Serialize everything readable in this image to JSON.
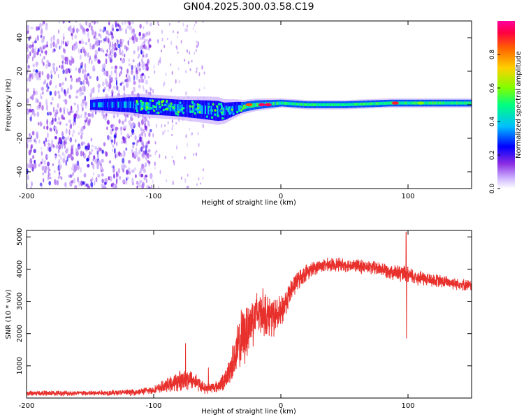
{
  "title": "GN04.2025.300.03.58.C19",
  "chart_data": [
    {
      "type": "heatmap",
      "name": "spectrogram",
      "xlabel": "Height of straight line (km)",
      "ylabel": "Frequency (Hz)",
      "xlim": [
        -200,
        150
      ],
      "ylim": [
        -50,
        50
      ],
      "xticks": [
        -200,
        -100,
        0,
        100
      ],
      "yticks": [
        -40,
        -20,
        0,
        20,
        40
      ],
      "colorbar": {
        "label": "Normalized spectral amplitude",
        "range": [
          0,
          1
        ],
        "ticks": [
          0.0,
          0.2,
          0.4,
          0.6,
          0.8
        ],
        "colors": [
          "#ffffff",
          "#cfb6ff",
          "#8a2be2",
          "#0000ff",
          "#00bfff",
          "#00ff80",
          "#80ff00",
          "#ffd000",
          "#ff6000",
          "#ff0040",
          "#ff00a0"
        ]
      },
      "features": {
        "noise_region_x": [
          -200,
          -110
        ],
        "scatter_region_x": [
          -110,
          -60
        ],
        "signal_center_hz": [
          [
            -150,
            0
          ],
          [
            -120,
            0
          ],
          [
            -100,
            -1
          ],
          [
            -80,
            -2
          ],
          [
            -60,
            -3
          ],
          [
            -45,
            -4
          ],
          [
            -35,
            -2
          ],
          [
            -20,
            0
          ],
          [
            0,
            1
          ],
          [
            20,
            0
          ],
          [
            50,
            0
          ],
          [
            85,
            1
          ],
          [
            100,
            1
          ],
          [
            150,
            1
          ]
        ],
        "signal_halfwidth_hz": [
          [
            -150,
            3
          ],
          [
            -110,
            5
          ],
          [
            -80,
            5
          ],
          [
            -50,
            6
          ],
          [
            -30,
            3
          ],
          [
            0,
            2
          ],
          [
            150,
            2
          ]
        ],
        "peak_points": [
          [
            -15,
            0,
            0.95
          ],
          [
            -10,
            0,
            0.95
          ],
          [
            -25,
            0,
            0.85
          ],
          [
            90,
            1,
            0.9
          ],
          [
            110,
            1,
            0.6
          ]
        ]
      }
    },
    {
      "type": "line",
      "name": "snr",
      "xlabel": "Height of straight line (km)",
      "ylabel": "SNR (10 * v/v)",
      "xlim": [
        -200,
        150
      ],
      "ylim": [
        0,
        5200
      ],
      "xticks": [
        -200,
        -100,
        0,
        100
      ],
      "yticks": [
        1000,
        2000,
        3000,
        4000,
        5000
      ],
      "color": "#e8302c",
      "envelope": [
        [
          -200,
          150,
          80
        ],
        [
          -150,
          150,
          80
        ],
        [
          -115,
          180,
          90
        ],
        [
          -100,
          250,
          120
        ],
        [
          -85,
          450,
          250
        ],
        [
          -75,
          600,
          350
        ],
        [
          -68,
          550,
          280
        ],
        [
          -60,
          300,
          150
        ],
        [
          -50,
          350,
          180
        ],
        [
          -43,
          600,
          300
        ],
        [
          -37,
          1200,
          600
        ],
        [
          -32,
          1700,
          900
        ],
        [
          -27,
          2100,
          900
        ],
        [
          -22,
          2500,
          800
        ],
        [
          -15,
          2700,
          700
        ],
        [
          -8,
          2500,
          600
        ],
        [
          0,
          2600,
          500
        ],
        [
          5,
          3100,
          400
        ],
        [
          12,
          3600,
          300
        ],
        [
          20,
          3900,
          250
        ],
        [
          30,
          4100,
          200
        ],
        [
          45,
          4150,
          200
        ],
        [
          60,
          4100,
          200
        ],
        [
          80,
          4000,
          220
        ],
        [
          100,
          3800,
          260
        ],
        [
          120,
          3650,
          200
        ],
        [
          140,
          3550,
          180
        ],
        [
          150,
          3480,
          160
        ]
      ],
      "spikes": [
        [
          98.5,
          5150
        ],
        [
          98.8,
          1850
        ],
        [
          -75,
          1700
        ],
        [
          -57,
          950
        ]
      ]
    }
  ]
}
